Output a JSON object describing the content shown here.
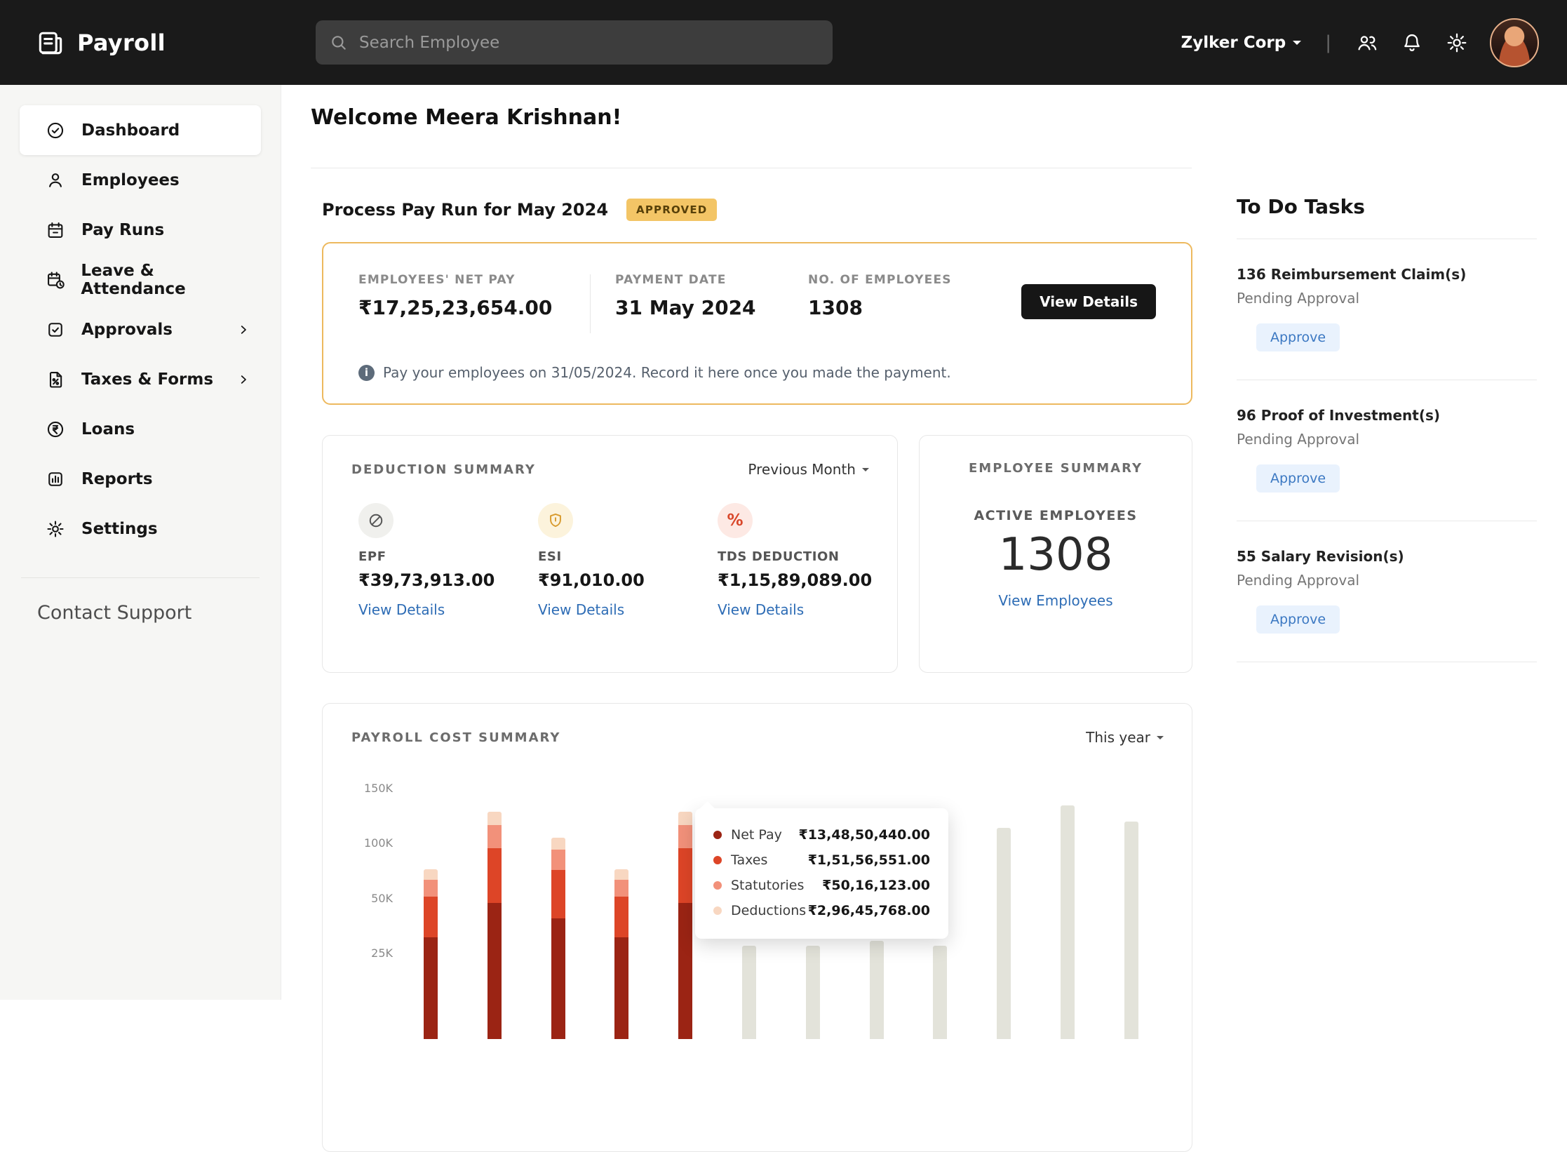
{
  "colors": {
    "topbar_bg": "#1a1a1a",
    "badge_bg": "#f3c566",
    "payrun_border": "#edb95e",
    "link": "#2d6cb5",
    "approve_btn_bg": "#e9f2fd",
    "approve_btn_text": "#3b78c2",
    "black_button": "#161616"
  },
  "topbar": {
    "app_name": "Payroll",
    "search_placeholder": "Search Employee",
    "org_name": "Zylker Corp"
  },
  "sidebar": {
    "items": [
      {
        "label": "Dashboard",
        "icon": "dashboard-icon",
        "active": true
      },
      {
        "label": "Employees",
        "icon": "employees-icon"
      },
      {
        "label": "Pay Runs",
        "icon": "pay-runs-icon"
      },
      {
        "label": "Leave & Attendance",
        "icon": "leave-attendance-icon"
      },
      {
        "label": "Approvals",
        "icon": "approvals-icon",
        "has_submenu": true
      },
      {
        "label": "Taxes & Forms",
        "icon": "taxes-forms-icon",
        "has_submenu": true
      },
      {
        "label": "Loans",
        "icon": "loans-icon"
      },
      {
        "label": "Reports",
        "icon": "reports-icon"
      },
      {
        "label": "Settings",
        "icon": "settings-icon"
      }
    ],
    "contact_support": "Contact Support"
  },
  "main": {
    "welcome": "Welcome Meera Krishnan!",
    "payrun": {
      "title": "Process Pay Run for May 2024",
      "badge": "APPROVED",
      "net_pay_label": "EMPLOYEES' NET PAY",
      "net_pay_value": "₹17,25,23,654.00",
      "payment_date_label": "PAYMENT DATE",
      "payment_date_value": "31 May 2024",
      "employees_label": "NO. OF EMPLOYEES",
      "employees_value": "1308",
      "view_details": "View Details",
      "note": "Pay your employees on 31/05/2024. Record it here once you made the payment."
    },
    "deduction_summary": {
      "title": "DEDUCTION SUMMARY",
      "period": "Previous Month",
      "items": [
        {
          "icon": "epf-icon",
          "label": "EPF",
          "value": "₹39,73,913.00",
          "link": "View Details"
        },
        {
          "icon": "esi-shield-icon",
          "label": "ESI",
          "value": "₹91,010.00",
          "link": "View Details"
        },
        {
          "icon": "tds-percent-icon",
          "label": "TDS DEDUCTION",
          "value": "₹1,15,89,089.00",
          "link": "View Details"
        }
      ]
    },
    "employee_summary": {
      "title": "EMPLOYEE SUMMARY",
      "active_label": "ACTIVE EMPLOYEES",
      "count": "1308",
      "link": "View Employees"
    }
  },
  "todo": {
    "title": "To Do Tasks",
    "tasks": [
      {
        "title": "136 Reimbursement Claim(s)",
        "status": "Pending Approval",
        "action": "Approve"
      },
      {
        "title": "96 Proof of Investment(s)",
        "status": "Pending Approval",
        "action": "Approve"
      },
      {
        "title": "55 Salary Revision(s)",
        "status": "Pending Approval",
        "action": "Approve"
      }
    ]
  },
  "chart_data": {
    "type": "bar",
    "stacked": true,
    "title": "PAYROLL COST SUMMARY",
    "period": "This year",
    "y_tick_labels": [
      "150K",
      "100K",
      "50K",
      "25K"
    ],
    "series_order_bottom_to_top": [
      "Net Pay",
      "Taxes",
      "Statutories",
      "Deductions"
    ],
    "segment_fractions_bottom_to_top": [
      0.6,
      0.24,
      0.1,
      0.06
    ],
    "colors": {
      "Net Pay": "#9b2414",
      "Taxes": "#dd4527",
      "Statutories": "#f2917a",
      "Deductions": "#f8d7c1",
      "future": "#e3e3da"
    },
    "bars": [
      {
        "type": "actual",
        "total_k": 104
      },
      {
        "type": "actual",
        "total_k": 139
      },
      {
        "type": "actual",
        "total_k": 123
      },
      {
        "type": "actual",
        "total_k": 104
      },
      {
        "type": "actual",
        "total_k": 139
      },
      {
        "type": "future",
        "total_k": 57
      },
      {
        "type": "future",
        "total_k": 57
      },
      {
        "type": "future",
        "total_k": 60
      },
      {
        "type": "future",
        "total_k": 57
      },
      {
        "type": "future",
        "total_k": 129
      },
      {
        "type": "future",
        "total_k": 143
      },
      {
        "type": "future",
        "total_k": 133
      }
    ],
    "tooltip": {
      "rows": [
        {
          "label": "Net Pay",
          "value": "₹13,48,50,440.00"
        },
        {
          "label": "Taxes",
          "value": "₹1,51,56,551.00"
        },
        {
          "label": "Statutories",
          "value": "₹50,16,123.00"
        },
        {
          "label": "Deductions",
          "value": "₹2,96,45,768.00"
        }
      ]
    }
  }
}
